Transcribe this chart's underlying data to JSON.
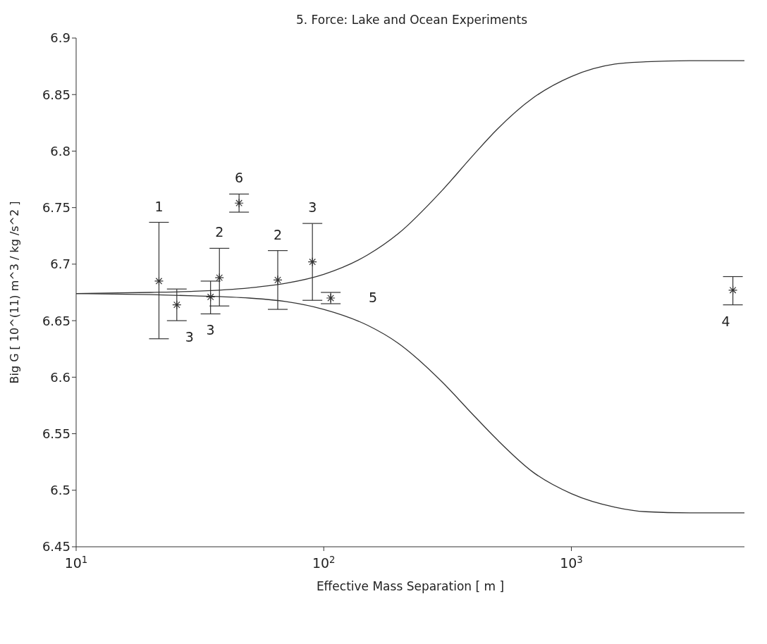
{
  "chart_data": {
    "type": "scatter",
    "title": "5. Force: Lake and Ocean Experiments",
    "xlabel": "Effective Mass Separation  [ m ]",
    "ylabel": "Big G  [ 10^(11) m^3 / kg /s^2  ]",
    "log": "x",
    "xlim": [
      10,
      5000
    ],
    "xticks": [
      {
        "value": 10,
        "label": "10$^{1}$"
      },
      {
        "value": 100,
        "label": "10$^{2}$"
      },
      {
        "value": 1000,
        "label": "10$^{3}$"
      }
    ],
    "ylim": [
      6.45,
      6.9
    ],
    "yticks": [
      6.45,
      6.5,
      6.55,
      6.6,
      6.65,
      6.7,
      6.75,
      6.8,
      6.85,
      6.9
    ],
    "grid": false,
    "legend": false,
    "series": [
      {
        "color": "#333333",
        "marker": "cross",
        "x": [
          21.6,
          25.5,
          34.9,
          37.9,
          45.5,
          65.2,
          90,
          106.7,
          4490
        ],
        "values": [
          6.685,
          6.664,
          6.671,
          6.688,
          6.754,
          6.686,
          6.702,
          6.67,
          6.677
        ],
        "errors": [
          [
            6.634,
            6.737
          ],
          [
            6.65,
            6.678
          ],
          [
            6.656,
            6.685
          ],
          [
            6.663,
            6.714
          ],
          [
            6.746,
            6.762
          ],
          [
            6.66,
            6.712
          ],
          [
            6.668,
            6.736
          ],
          [
            6.665,
            6.675
          ],
          [
            6.664,
            6.689
          ]
        ]
      },
      {
        "type": "line",
        "color": "#333333",
        "marker": "none",
        "line_style": "solid",
        "x": [
          10,
          20,
          30,
          50,
          70,
          100,
          150,
          200,
          300,
          400,
          500,
          700,
          1000,
          1500,
          2000,
          3000,
          5000
        ],
        "values": [
          6.674,
          6.675,
          6.676,
          6.679,
          6.683,
          6.691,
          6.708,
          6.727,
          6.765,
          6.796,
          6.819,
          6.847,
          6.866,
          6.877,
          6.879,
          6.88,
          6.88
        ]
      },
      {
        "type": "line",
        "color": "#333333",
        "marker": "none",
        "line_style": "solid",
        "x": [
          10,
          20,
          30,
          50,
          70,
          100,
          150,
          200,
          300,
          400,
          500,
          700,
          1000,
          1500,
          2000,
          3000,
          5000
        ],
        "values": [
          6.674,
          6.673,
          6.672,
          6.67,
          6.667,
          6.66,
          6.646,
          6.63,
          6.596,
          6.567,
          6.545,
          6.516,
          6.497,
          6.485,
          6.481,
          6.48,
          6.48
        ]
      }
    ],
    "annotations": [
      "1",
      "3",
      "3",
      "2",
      "6",
      "2",
      "3",
      "5",
      "4"
    ]
  }
}
